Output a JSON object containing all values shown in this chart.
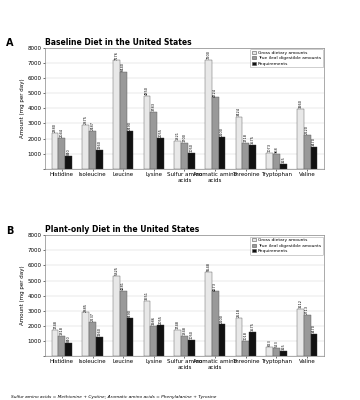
{
  "panel_A_title": "Baseline Diet in the United States",
  "panel_B_title": "Plant-only Diet in the United States",
  "categories": [
    "Histidine",
    "Isoleucine",
    "Leucine",
    "Lysine",
    "Sulfur amino\nacids",
    "Aromatic amino\nacids",
    "Threonine",
    "Tryptophan",
    "Valine"
  ],
  "panel_A": {
    "gross": [
      2380,
      2875,
      7176,
      4850,
      1821,
      7200,
      3424,
      1073,
      3960
    ],
    "digestible": [
      2044,
      2487,
      6440,
      3783,
      1700,
      4724,
      1718,
      968,
      2220
    ],
    "requirements": [
      840,
      1260,
      2490,
      2055,
      1050,
      2100,
      1575,
      315,
      1470
    ]
  },
  "panel_B": {
    "gross": [
      1748,
      2885,
      5325,
      3651,
      1748,
      5548,
      2518,
      623,
      3112
    ],
    "digestible": [
      1318,
      2237,
      4281,
      1986,
      1348,
      4273,
      1018,
      523,
      2713
    ],
    "requirements": [
      840,
      1260,
      2490,
      2055,
      1050,
      2100,
      1575,
      315,
      1470
    ]
  },
  "colors": {
    "gross": "#e8e8e8",
    "digestible": "#999999",
    "requirements": "#111111"
  },
  "legend_labels": [
    "Gross dietary amounts",
    "True ileal digestible amounts",
    "Requirements"
  ],
  "ylabel": "Amount (mg per day)",
  "footnote": "Sulfur amino acids = Methionine + Cystine; Aromatic amino acids = Phenylalanine + Tyrosine",
  "ylim": [
    0,
    8000
  ],
  "yticks": [
    0,
    1000,
    2000,
    3000,
    4000,
    5000,
    6000,
    7000,
    8000
  ]
}
